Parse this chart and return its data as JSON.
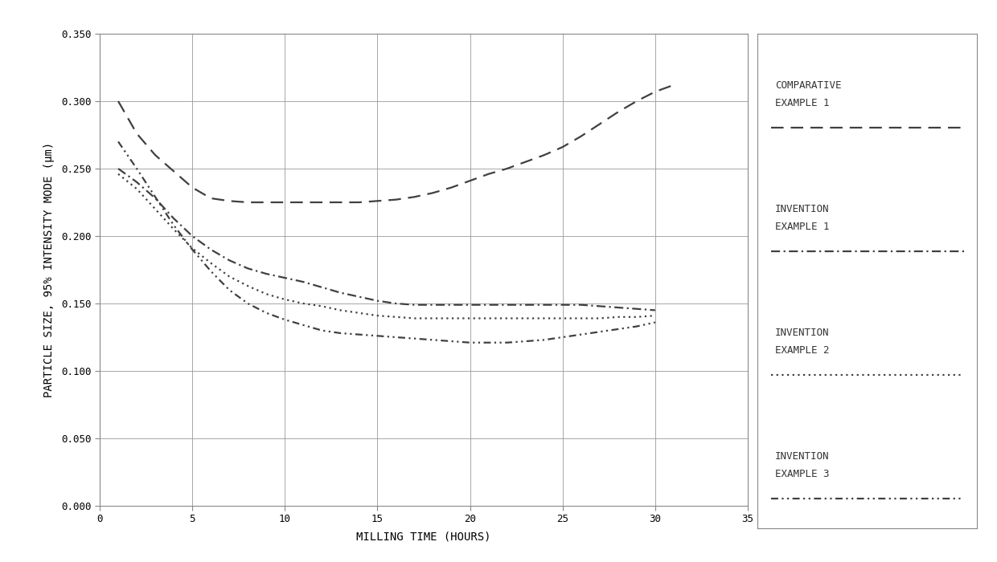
{
  "title": "",
  "xlabel": "MILLING TIME (HOURS)",
  "ylabel": "PARTICLE SIZE, 95% INTENSITY MODE (μm)",
  "xlim": [
    0,
    35
  ],
  "ylim": [
    0.0,
    0.35
  ],
  "yticks": [
    0.0,
    0.05,
    0.1,
    0.15,
    0.2,
    0.25,
    0.3,
    0.35
  ],
  "xticks": [
    0,
    5,
    10,
    15,
    20,
    25,
    30,
    35
  ],
  "background_color": "#ffffff",
  "line_color": "#404040",
  "series": [
    {
      "label": "COMPARATIVE\nEXAMPLE 1",
      "x": [
        1,
        2,
        3,
        4,
        5,
        6,
        7,
        8,
        9,
        10,
        11,
        12,
        13,
        14,
        15,
        16,
        17,
        18,
        19,
        20,
        21,
        22,
        23,
        24,
        25,
        26,
        27,
        28,
        29,
        30,
        31
      ],
      "y": [
        0.3,
        0.276,
        0.26,
        0.248,
        0.236,
        0.228,
        0.226,
        0.225,
        0.225,
        0.225,
        0.225,
        0.225,
        0.225,
        0.225,
        0.226,
        0.227,
        0.229,
        0.232,
        0.236,
        0.241,
        0.246,
        0.25,
        0.255,
        0.26,
        0.266,
        0.274,
        0.283,
        0.292,
        0.3,
        0.307,
        0.312
      ],
      "dashes": [
        7,
        4
      ]
    },
    {
      "label": "INVENTION\nEXAMPLE 1",
      "x": [
        1,
        2,
        3,
        4,
        5,
        6,
        7,
        8,
        9,
        10,
        11,
        12,
        13,
        14,
        15,
        16,
        17,
        18,
        19,
        20,
        21,
        22,
        23,
        24,
        25,
        26,
        27,
        28,
        29,
        30
      ],
      "y": [
        0.25,
        0.24,
        0.228,
        0.213,
        0.2,
        0.19,
        0.182,
        0.176,
        0.172,
        0.169,
        0.166,
        0.162,
        0.158,
        0.155,
        0.152,
        0.15,
        0.149,
        0.149,
        0.149,
        0.149,
        0.149,
        0.149,
        0.149,
        0.149,
        0.149,
        0.149,
        0.148,
        0.147,
        0.146,
        0.145
      ],
      "dashes": [
        5,
        2,
        1,
        2
      ]
    },
    {
      "label": "INVENTION\nEXAMPLE 2",
      "x": [
        1,
        2,
        3,
        4,
        5,
        6,
        7,
        8,
        9,
        10,
        11,
        12,
        13,
        14,
        15,
        16,
        17,
        18,
        19,
        20,
        21,
        22,
        23,
        24,
        25,
        26,
        27,
        28,
        29,
        30
      ],
      "y": [
        0.246,
        0.235,
        0.22,
        0.205,
        0.191,
        0.18,
        0.17,
        0.163,
        0.157,
        0.153,
        0.15,
        0.148,
        0.145,
        0.143,
        0.141,
        0.14,
        0.139,
        0.139,
        0.139,
        0.139,
        0.139,
        0.139,
        0.139,
        0.139,
        0.139,
        0.139,
        0.139,
        0.14,
        0.14,
        0.141
      ],
      "dashes": [
        1,
        2
      ]
    },
    {
      "label": "INVENTION\nEXAMPLE 3",
      "x": [
        1,
        2,
        3,
        4,
        5,
        6,
        7,
        8,
        9,
        10,
        11,
        12,
        13,
        14,
        15,
        16,
        17,
        18,
        19,
        20,
        21,
        22,
        23,
        24,
        25,
        26,
        27,
        28,
        29,
        30
      ],
      "y": [
        0.27,
        0.25,
        0.229,
        0.208,
        0.19,
        0.174,
        0.16,
        0.15,
        0.143,
        0.138,
        0.134,
        0.13,
        0.128,
        0.127,
        0.126,
        0.125,
        0.124,
        0.123,
        0.122,
        0.121,
        0.121,
        0.121,
        0.122,
        0.123,
        0.125,
        0.127,
        0.129,
        0.131,
        0.133,
        0.136
      ],
      "dashes": [
        4,
        2,
        1,
        2,
        1,
        2
      ]
    }
  ],
  "legend_labels": [
    "COMPARATIVE\nEXAMPLE 1",
    "INVENTION\nEXAMPLE 1",
    "INVENTION\nEXAMPLE 2",
    "INVENTION\nEXAMPLE 3"
  ],
  "legend_dashes": [
    [
      7,
      4
    ],
    [
      5,
      2,
      1,
      2
    ],
    [
      1,
      2
    ],
    [
      4,
      2,
      1,
      2,
      1,
      2
    ]
  ]
}
